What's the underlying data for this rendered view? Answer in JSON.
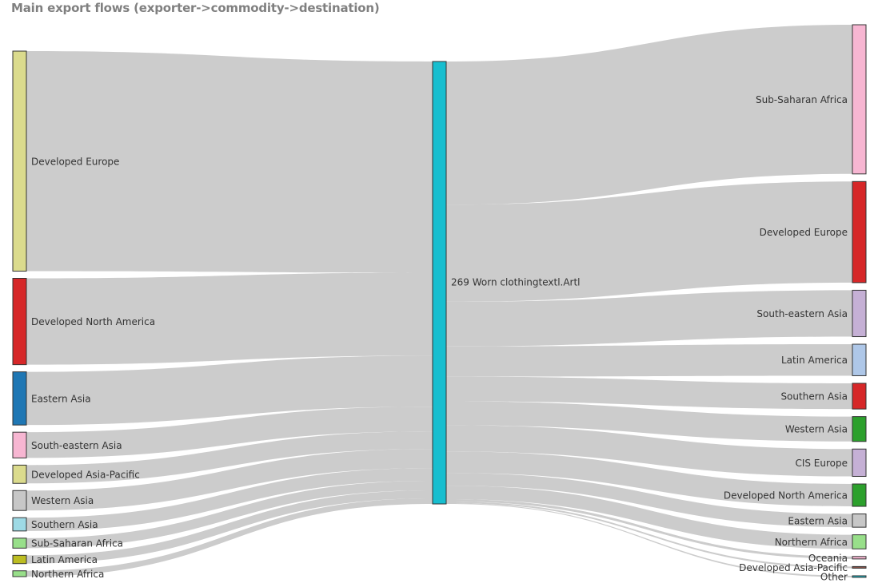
{
  "title": "Main export flows (exporter->commodity->destination)",
  "chart_data": {
    "type": "sankey",
    "title": "Main export flows (exporter->commodity->destination)",
    "link_color": "#cccccc",
    "exporters": [
      {
        "name": "Developed Europe",
        "value": 265,
        "color": "#dbdb8d"
      },
      {
        "name": "Developed North America",
        "value": 104,
        "color": "#d62728"
      },
      {
        "name": "Eastern Asia",
        "value": 64,
        "color": "#1f77b4"
      },
      {
        "name": "South-eastern Asia",
        "value": 31,
        "color": "#f7b6d2"
      },
      {
        "name": "Developed Asia-Pacific",
        "value": 22,
        "color": "#dbdb8d"
      },
      {
        "name": "Western Asia",
        "value": 24,
        "color": "#c7c7c7"
      },
      {
        "name": "Southern Asia",
        "value": 16,
        "color": "#9edae5"
      },
      {
        "name": "Sub-Saharan Africa",
        "value": 12,
        "color": "#98df8a"
      },
      {
        "name": "Latin America",
        "value": 10,
        "color": "#bcbd22"
      },
      {
        "name": "Northern Africa",
        "value": 7,
        "color": "#98df8a"
      }
    ],
    "commodity": {
      "name": "269 Worn clothingtextl.Artl",
      "color": "#17becf"
    },
    "destinations": [
      {
        "name": "Sub-Saharan Africa",
        "value": 180,
        "color": "#f7b6d2"
      },
      {
        "name": "Developed Europe",
        "value": 122,
        "color": "#d62728"
      },
      {
        "name": "South-eastern Asia",
        "value": 56,
        "color": "#c5b0d5"
      },
      {
        "name": "Latin America",
        "value": 38,
        "color": "#aec7e8"
      },
      {
        "name": "Southern Asia",
        "value": 31,
        "color": "#d62728"
      },
      {
        "name": "Western Asia",
        "value": 30,
        "color": "#2ca02c"
      },
      {
        "name": "CIS Europe",
        "value": 33,
        "color": "#c5b0d5"
      },
      {
        "name": "Developed North America",
        "value": 27,
        "color": "#2ca02c"
      },
      {
        "name": "Eastern Asia",
        "value": 16,
        "color": "#c7c7c7"
      },
      {
        "name": "Northern Africa",
        "value": 17,
        "color": "#98df8a"
      },
      {
        "name": "Oceania",
        "value": 3,
        "color": "#f7b6d2"
      },
      {
        "name": "Developed Asia-Pacific",
        "value": 2,
        "color": "#8c564b"
      },
      {
        "name": "Other",
        "value": 1,
        "color": "#17becf"
      }
    ]
  }
}
